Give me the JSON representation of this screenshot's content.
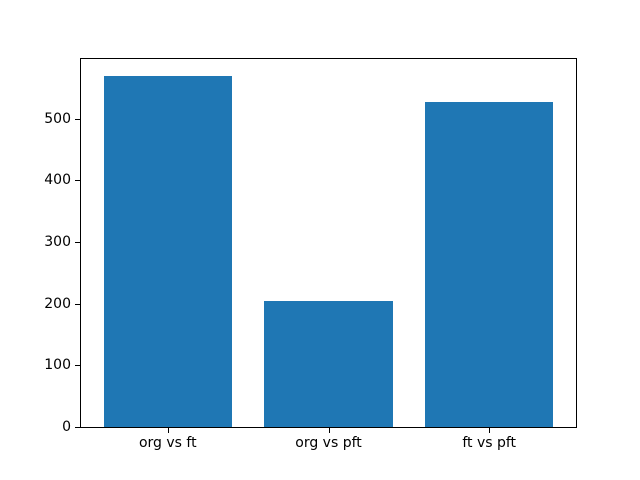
{
  "figure": {
    "background": "#ffffff"
  },
  "chart_data": {
    "type": "bar",
    "categories": [
      "org vs ft",
      "org vs pft",
      "ft vs pft"
    ],
    "values": [
      569,
      205,
      527
    ],
    "title": "",
    "xlabel": "",
    "ylabel": "",
    "yticks": [
      0,
      100,
      200,
      300,
      400,
      500
    ],
    "ylim": [
      0,
      597
    ],
    "xlim": [
      -0.54,
      2.54
    ],
    "bar_positions": [
      0,
      1,
      2
    ],
    "bar_width": 0.8,
    "bar_color": "#1f77b4",
    "spine_color": "#000000",
    "tick_color": "#000000",
    "grid": false,
    "legend": null
  }
}
